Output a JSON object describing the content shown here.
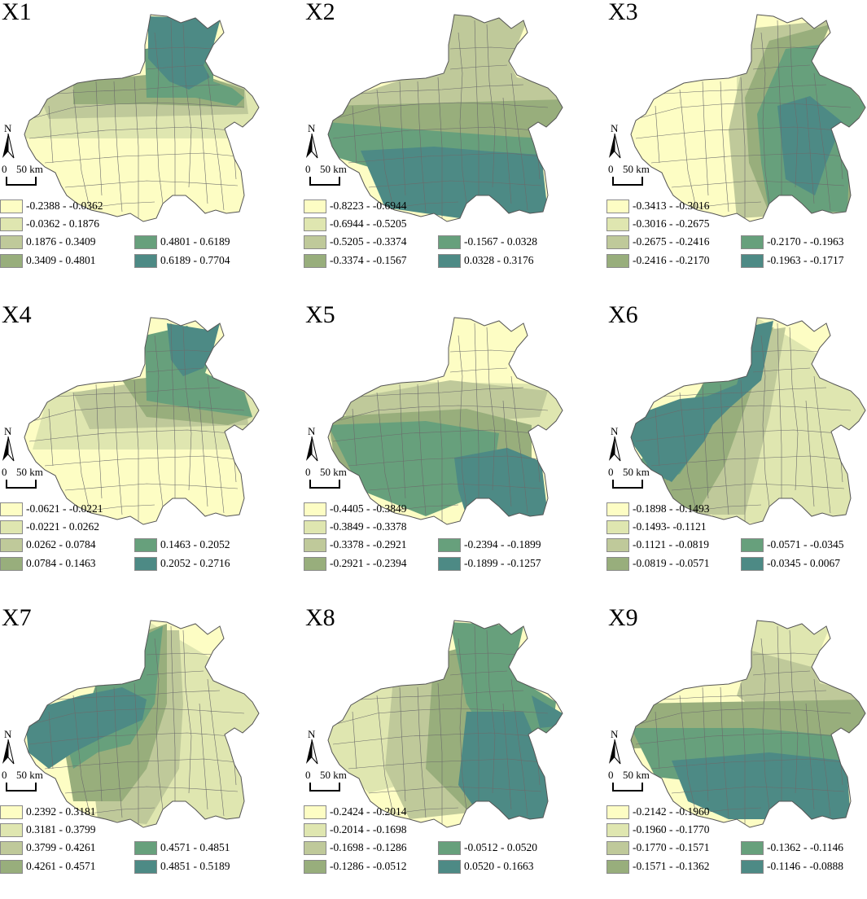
{
  "palette": [
    "#fdfdc4",
    "#dfe6b0",
    "#bfc99a",
    "#98ae7c",
    "#67a07c",
    "#4d8a85"
  ],
  "scale": {
    "zero": "0",
    "distance": "50 km"
  },
  "north_label": "N",
  "panels": [
    {
      "title": "X1",
      "legend": [
        "-0.2388 - -0.0362",
        "-0.0362 - 0.1876",
        "0.1876 - 0.3409",
        "0.3409 - 0.4801",
        "0.4801 - 0.6189",
        "0.6189 - 0.7704"
      ]
    },
    {
      "title": "X2",
      "legend": [
        "-0.8223 - -0.6944",
        "-0.6944 - -0.5205",
        "-0.5205 - -0.3374",
        "-0.3374 - -0.1567",
        "-0.1567 - 0.0328",
        "0.0328 - 0.3176"
      ]
    },
    {
      "title": "X3",
      "legend": [
        "-0.3413 - -0.3016",
        "-0.3016 - -0.2675",
        "-0.2675 - -0.2416",
        "-0.2416 - -0.2170",
        "-0.2170 - -0.1963",
        "-0.1963 - -0.1717"
      ]
    },
    {
      "title": "X4",
      "legend": [
        "-0.0621 - -0.0221",
        "-0.0221 - 0.0262",
        "0.0262 - 0.0784",
        "0.0784 - 0.1463",
        "0.1463 - 0.2052",
        "0.2052 - 0.2716"
      ]
    },
    {
      "title": "X5",
      "legend": [
        "-0.4405 - -0.3849",
        "-0.3849 - -0.3378",
        "-0.3378 - -0.2921",
        "-0.2921 - -0.2394",
        "-0.2394 - -0.1899",
        "-0.1899 - -0.1257"
      ]
    },
    {
      "title": "X6",
      "legend": [
        "-0.1898 - -0.1493",
        "-0.1493- -0.1121",
        "-0.1121 - -0.0819",
        "-0.0819 - -0.0571",
        "-0.0571 - -0.0345",
        "-0.0345 - 0.0067"
      ]
    },
    {
      "title": "X7",
      "legend": [
        "0.2392 - 0.3181",
        "0.3181 - 0.3799",
        "0.3799 - 0.4261",
        "0.4261 - 0.4571",
        "0.4571 - 0.4851",
        "0.4851 - 0.5189"
      ]
    },
    {
      "title": "X8",
      "legend": [
        "-0.2424 - -0.2014",
        "-0.2014 - -0.1698",
        "-0.1698 - -0.1286",
        "-0.1286 - -0.0512",
        "-0.0512 - 0.0520",
        "0.0520 - 0.1663"
      ]
    },
    {
      "title": "X9",
      "legend": [
        "-0.2142 - -0.1960",
        "-0.1960 - -0.1770",
        "-0.1770 - -0.1571",
        "-0.1571 - -0.1362",
        "-0.1362 - -0.1146",
        "-0.1146 - -0.0888"
      ]
    }
  ]
}
